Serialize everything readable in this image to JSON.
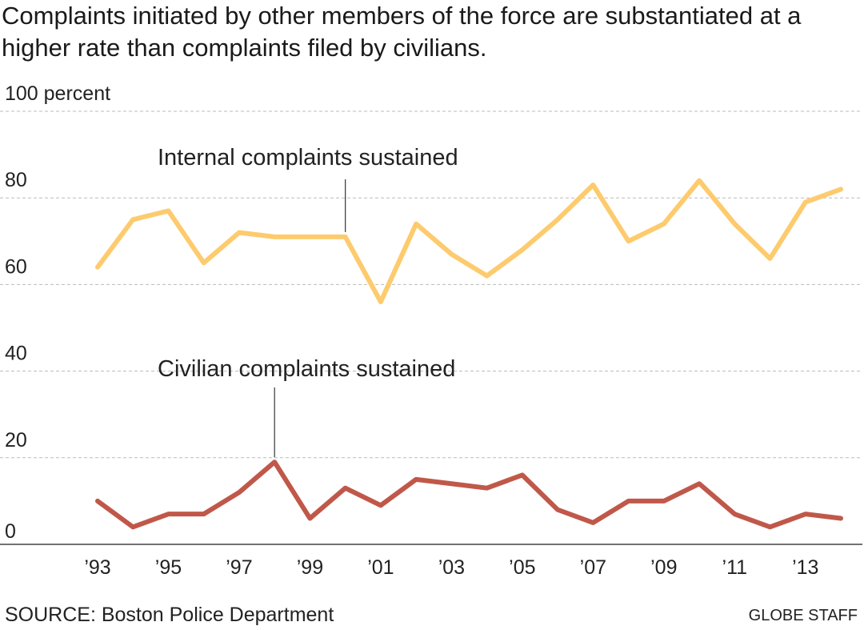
{
  "title": "Complaints initiated by other members of the force are substantiated at a higher rate than complaints filed by civilians.",
  "source": "SOURCE: Boston Police Department",
  "credit": "GLOBE STAFF",
  "colors": {
    "internal": "#fdcb6e",
    "civilian": "#c0584a",
    "grid": "#bbbbbb",
    "axis": "#444444",
    "text": "#222222"
  },
  "chart_data": {
    "type": "line",
    "title": "Complaints initiated by other members of the force are substantiated at a higher rate than complaints filed by civilians.",
    "xlabel": "",
    "ylabel": "",
    "ylim": [
      0,
      100
    ],
    "y_ticks": [
      {
        "value": 0,
        "label": "0"
      },
      {
        "value": 20,
        "label": "20"
      },
      {
        "value": 40,
        "label": "40"
      },
      {
        "value": 60,
        "label": "60"
      },
      {
        "value": 80,
        "label": "80"
      },
      {
        "value": 100,
        "label": "100 percent"
      }
    ],
    "x_ticks": [
      {
        "value": 1993,
        "label": "’93"
      },
      {
        "value": 1995,
        "label": "’95"
      },
      {
        "value": 1997,
        "label": "’97"
      },
      {
        "value": 1999,
        "label": "’99"
      },
      {
        "value": 2001,
        "label": "’01"
      },
      {
        "value": 2003,
        "label": "’03"
      },
      {
        "value": 2005,
        "label": "’05"
      },
      {
        "value": 2007,
        "label": "’07"
      },
      {
        "value": 2009,
        "label": "’09"
      },
      {
        "value": 2011,
        "label": "’11"
      },
      {
        "value": 2013,
        "label": "’13"
      }
    ],
    "x": [
      1993,
      1994,
      1995,
      1996,
      1997,
      1998,
      1999,
      2000,
      2001,
      2002,
      2003,
      2004,
      2005,
      2006,
      2007,
      2008,
      2009,
      2010,
      2011,
      2012,
      2013,
      2014
    ],
    "grid": true,
    "series": [
      {
        "name": "Internal complaints sustained",
        "color": "#fdcb6e",
        "values": [
          64,
          75,
          77,
          65,
          72,
          71,
          71,
          71,
          56,
          74,
          67,
          62,
          68,
          75,
          83,
          70,
          74,
          84,
          74,
          66,
          79,
          82
        ],
        "label_anchor_x": 2000
      },
      {
        "name": "Civilian complaints sustained",
        "color": "#c0584a",
        "values": [
          10,
          4,
          7,
          7,
          12,
          19,
          6,
          13,
          9,
          15,
          14,
          13,
          16,
          8,
          5,
          10,
          10,
          14,
          7,
          4,
          7,
          6
        ],
        "label_anchor_x": 1998
      }
    ]
  }
}
